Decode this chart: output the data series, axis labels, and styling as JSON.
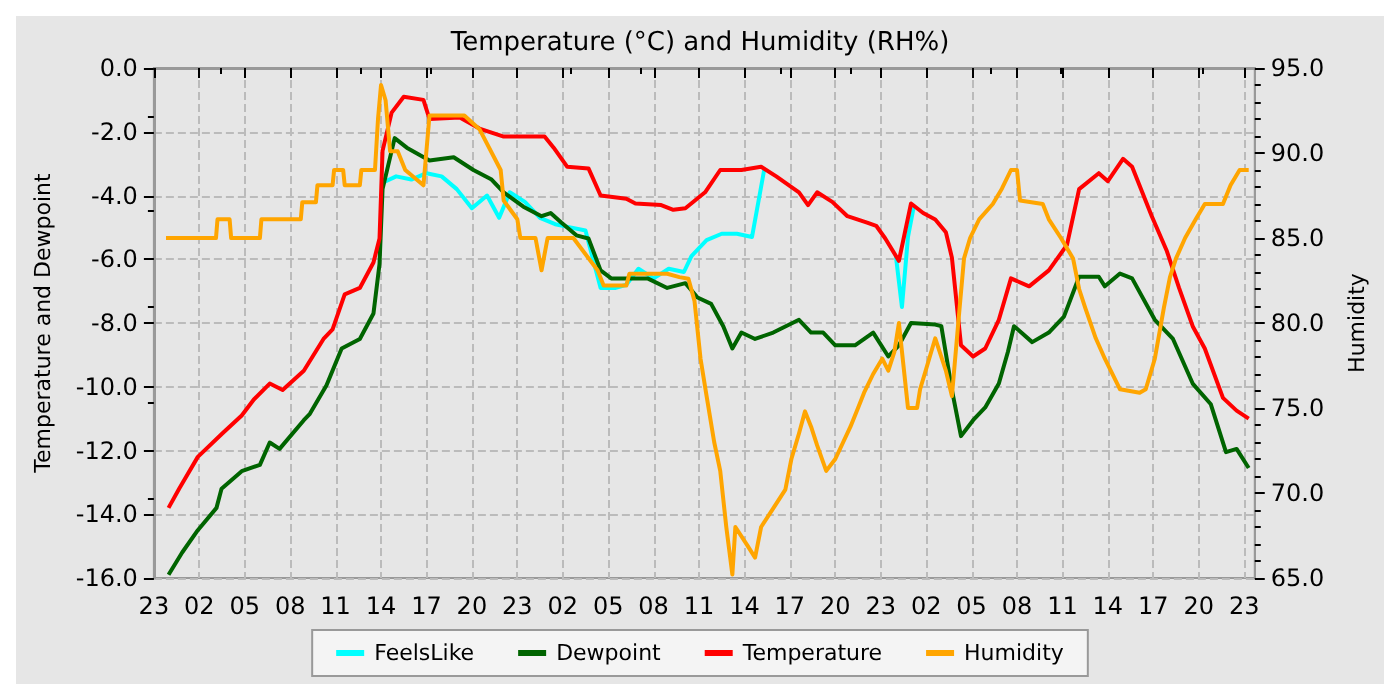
{
  "chart_data": {
    "type": "line",
    "title": "Temperature (°C) and Humidity (RH%)",
    "ylabel": "Temperature and Dewpoint",
    "y2label": "Humidity",
    "xlim": [
      "--01-01T23:00",
      "--01-04T23:42"
    ],
    "xticks": [
      {
        "value": "--01-01T23:00",
        "label": "23"
      },
      {
        "value": "--01-02T02:00",
        "label": "02"
      },
      {
        "value": "--01-02T05:00",
        "label": "05"
      },
      {
        "value": "--01-02T08:00",
        "label": "08"
      },
      {
        "value": "--01-02T11:00",
        "label": "11"
      },
      {
        "value": "--01-02T14:00",
        "label": "14"
      },
      {
        "value": "--01-02T17:00",
        "label": "17"
      },
      {
        "value": "--01-02T20:00",
        "label": "20"
      },
      {
        "value": "--01-02T23:00",
        "label": "23"
      },
      {
        "value": "--01-03T02:00",
        "label": "02"
      },
      {
        "value": "--01-03T05:00",
        "label": "05"
      },
      {
        "value": "--01-03T08:00",
        "label": "08"
      },
      {
        "value": "--01-03T11:00",
        "label": "11"
      },
      {
        "value": "--01-03T14:00",
        "label": "14"
      },
      {
        "value": "--01-03T17:00",
        "label": "17"
      },
      {
        "value": "--01-03T20:00",
        "label": "20"
      },
      {
        "value": "--01-03T23:00",
        "label": "23"
      },
      {
        "value": "--01-04T02:00",
        "label": "02"
      },
      {
        "value": "--01-04T05:00",
        "label": "05"
      },
      {
        "value": "--01-04T08:00",
        "label": "08"
      },
      {
        "value": "--01-04T11:00",
        "label": "11"
      },
      {
        "value": "--01-04T14:00",
        "label": "14"
      },
      {
        "value": "--01-04T17:00",
        "label": "17"
      },
      {
        "value": "--01-04T20:00",
        "label": "20"
      },
      {
        "value": "--01-04T23:00",
        "label": "23"
      }
    ],
    "ylim": [
      -16,
      0
    ],
    "yticks": [
      {
        "value": -16,
        "label": "-16.0"
      },
      {
        "value": -14,
        "label": "-14.0"
      },
      {
        "value": -12,
        "label": "-12.0"
      },
      {
        "value": -10,
        "label": "-10.0"
      },
      {
        "value": -8,
        "label": "-8.0"
      },
      {
        "value": -6,
        "label": "-6.0"
      },
      {
        "value": -4,
        "label": "-4.0"
      },
      {
        "value": -2,
        "label": "-2.0"
      },
      {
        "value": 0,
        "label": "0.0"
      }
    ],
    "y2lim": [
      65,
      95
    ],
    "y2ticks": [
      {
        "value": 65,
        "label": "65.0"
      },
      {
        "value": 70,
        "label": "70.0"
      },
      {
        "value": 75,
        "label": "75.0"
      },
      {
        "value": 80,
        "label": "80.0"
      },
      {
        "value": 85,
        "label": "85.0"
      },
      {
        "value": 90,
        "label": "90.0"
      },
      {
        "value": 95,
        "label": "95.0"
      }
    ],
    "grid": true,
    "legend": "bottom",
    "marker": "none",
    "line_style": "solid",
    "series": [
      {
        "name": "FeelsLike",
        "color": "#00ffff",
        "x": [
          "--01-02T14:06",
          "--01-02T15:00",
          "--01-02T16:00",
          "--01-02T17:00",
          "--01-02T18:00",
          "--01-02T19:00",
          "--01-02T20:00",
          "--01-02T21:00",
          "--01-02T21:48",
          "--01-02T22:30",
          "--01-02T23:30",
          "--01-03T00:30",
          "--01-03T01:30",
          "--01-03T02:30",
          "--01-03T03:30",
          "--01-03T04:30",
          "--01-03T05:30",
          "--01-03T06:12",
          "--01-03T07:00",
          "--01-03T08:00",
          "--01-03T09:00",
          "--01-03T10:00",
          "--01-03T10:30",
          "--01-03T11:30",
          "--01-03T12:30",
          "--01-03T13:30",
          "--01-03T14:30",
          "--01-03T15:18",
          "--01-03T20:00",
          "--01-04T00:00",
          "--01-04T00:24",
          "--01-04T00:48",
          "--01-04T01:12"
        ],
        "values": [
          -3.6,
          -3.4,
          -3.5,
          -3.3,
          -3.4,
          -3.8,
          -4.4,
          -4.0,
          -4.7,
          -3.9,
          -4.2,
          -4.7,
          -4.9,
          -5.0,
          -5.1,
          -6.9,
          -6.9,
          -6.8,
          -6.3,
          -6.6,
          -6.3,
          -6.4,
          -5.9,
          -5.4,
          -5.2,
          -5.2,
          -5.3,
          -3.2,
          null,
          -5.9,
          -7.5,
          -5.3,
          -4.3
        ]
      },
      {
        "name": "Dewpoint",
        "color": "#006400",
        "x": [
          "--01-01T23:58",
          "--01-02T00:52",
          "--01-02T01:54",
          "--01-02T03:08",
          "--01-02T03:28",
          "--01-02T04:48",
          "--01-02T06:00",
          "--01-02T06:39",
          "--01-02T07:18",
          "--01-02T08:54",
          "--01-02T09:18",
          "--01-02T10:24",
          "--01-02T11:24",
          "--01-02T12:36",
          "--01-02T13:30",
          "--01-02T13:54",
          "--01-02T14:06",
          "--01-02T14:54",
          "--01-02T15:42",
          "--01-02T17:12",
          "--01-02T18:48",
          "--01-02T20:06",
          "--01-02T21:18",
          "--01-02T22:06",
          "--01-02T23:24",
          "--01-03T00:36",
          "--01-03T01:12",
          "--01-03T01:54",
          "--01-03T02:54",
          "--01-03T03:42",
          "--01-03T04:30",
          "--01-03T05:12",
          "--01-03T07:36",
          "--01-03T08:54",
          "--01-03T10:06",
          "--01-03T10:54",
          "--01-03T11:48",
          "--01-03T12:36",
          "--01-03T13:12",
          "--01-03T13:48",
          "--01-03T14:42",
          "--01-03T15:54",
          "--01-03T17:36",
          "--01-03T18:24",
          "--01-03T19:12",
          "--01-03T20:00",
          "--01-03T21:18",
          "--01-03T22:30",
          "--01-03T23:30",
          "--01-04T00:12",
          "--01-04T01:00",
          "--01-04T02:36",
          "--01-04T03:00",
          "--01-04T03:42",
          "--01-04T04:18",
          "--01-04T05:06",
          "--01-04T05:54",
          "--01-04T06:48",
          "--01-04T07:24",
          "--01-04T07:48",
          "--01-04T09:00",
          "--01-04T10:06",
          "--01-04T11:06",
          "--01-04T12:06",
          "--01-04T13:24",
          "--01-04T13:48",
          "--01-04T14:48",
          "--01-04T15:36",
          "--01-04T17:06",
          "--01-04T18:18",
          "--01-04T19:36",
          "--01-04T20:48",
          "--01-04T21:48",
          "--01-04T22:30",
          "--01-04T23:18"
        ],
        "values": [
          -15.9,
          -15.2,
          -14.5,
          -13.8,
          -13.2,
          -12.65,
          -12.45,
          -11.75,
          -11.95,
          -11.05,
          -10.85,
          -9.95,
          -8.8,
          -8.5,
          -7.7,
          -6.15,
          -3.8,
          -2.2,
          -2.5,
          -2.9,
          -2.8,
          -3.2,
          -3.5,
          -3.9,
          -4.35,
          -4.65,
          -4.55,
          -4.85,
          -5.25,
          -5.35,
          -6.35,
          -6.6,
          -6.6,
          -6.9,
          -6.75,
          -7.2,
          -7.4,
          -8.1,
          -8.8,
          -8.3,
          -8.5,
          -8.3,
          -7.9,
          -8.3,
          -8.3,
          -8.7,
          -8.7,
          -8.3,
          -9.05,
          -8.7,
          -8.0,
          -8.05,
          -8.1,
          -10.1,
          -11.55,
          -11.05,
          -10.65,
          -9.9,
          -8.9,
          -8.1,
          -8.6,
          -8.3,
          -7.8,
          -6.55,
          -6.55,
          -6.85,
          -6.45,
          -6.6,
          -7.9,
          -8.5,
          -9.9,
          -10.55,
          -12.05,
          -11.95,
          -12.55
        ]
      },
      {
        "name": "Temperature",
        "color": "#ff0000",
        "x": [
          "--01-01T23:58",
          "--01-02T00:40",
          "--01-02T01:54",
          "--01-02T03:33",
          "--01-02T04:48",
          "--01-02T05:36",
          "--01-02T06:39",
          "--01-02T07:30",
          "--01-02T08:54",
          "--01-02T10:12",
          "--01-02T10:48",
          "--01-02T11:36",
          "--01-02T12:36",
          "--01-02T13:30",
          "--01-02T13:54",
          "--01-02T14:06",
          "--01-02T14:42",
          "--01-02T15:30",
          "--01-02T16:48",
          "--01-02T17:12",
          "--01-02T19:12",
          "--01-02T20:30",
          "--01-02T22:06",
          "--01-03T00:48",
          "--01-03T01:24",
          "--01-03T02:18",
          "--01-03T03:42",
          "--01-03T04:30",
          "--01-03T06:12",
          "--01-03T06:48",
          "--01-03T08:30",
          "--01-03T09:18",
          "--01-03T10:06",
          "--01-03T11:24",
          "--01-03T12:24",
          "--01-03T13:48",
          "--01-03T15:06",
          "--01-03T16:06",
          "--01-03T17:36",
          "--01-03T18:12",
          "--01-03T18:48",
          "--01-03T19:48",
          "--01-03T20:48",
          "--01-03T22:06",
          "--01-03T22:42",
          "--01-03T23:18",
          "--01-04T00:12",
          "--01-04T01:00",
          "--01-04T01:48",
          "--01-04T02:36",
          "--01-04T03:18",
          "--01-04T03:42",
          "--01-04T04:18",
          "--01-04T05:06",
          "--01-04T05:54",
          "--01-04T06:48",
          "--01-04T07:36",
          "--01-04T08:48",
          "--01-04T10:06",
          "--01-04T11:18",
          "--01-04T12:06",
          "--01-04T13:24",
          "--01-04T14:00",
          "--01-04T15:00",
          "--01-04T15:36",
          "--01-04T16:54",
          "--01-04T17:54",
          "--01-04T18:42",
          "--01-04T19:36",
          "--01-04T20:24",
          "--01-04T21:36",
          "--01-04T22:30",
          "--01-04T23:18"
        ],
        "values": [
          -13.8,
          -13.2,
          -12.2,
          -11.45,
          -10.9,
          -10.4,
          -9.9,
          -10.1,
          -9.5,
          -8.5,
          -8.2,
          -7.1,
          -6.9,
          -6.1,
          -5.35,
          -2.6,
          -1.4,
          -0.9,
          -1.0,
          -1.6,
          -1.55,
          -1.9,
          -2.15,
          -2.15,
          -2.5,
          -3.1,
          -3.15,
          -4.0,
          -4.1,
          -4.25,
          -4.3,
          -4.45,
          -4.4,
          -3.9,
          -3.2,
          -3.2,
          -3.1,
          -3.4,
          -3.9,
          -4.3,
          -3.9,
          -4.2,
          -4.65,
          -4.85,
          -4.95,
          -5.35,
          -6.05,
          -4.25,
          -4.55,
          -4.75,
          -5.15,
          -5.95,
          -8.7,
          -9.05,
          -8.8,
          -7.9,
          -6.6,
          -6.85,
          -6.35,
          -5.55,
          -3.8,
          -3.3,
          -3.55,
          -2.85,
          -3.1,
          -4.65,
          -5.75,
          -6.9,
          -8.1,
          -8.8,
          -10.35,
          -10.75,
          -11.0
        ]
      },
      {
        "name": "Humidity",
        "color": "#ffa500",
        "axis": "y2",
        "x": [
          "--01-01T23:48",
          "--01-02T03:06",
          "--01-02T03:12",
          "--01-02T04:00",
          "--01-02T04:06",
          "--01-02T06:00",
          "--01-02T06:06",
          "--01-02T08:42",
          "--01-02T08:48",
          "--01-02T09:42",
          "--01-02T09:48",
          "--01-02T10:48",
          "--01-02T10:54",
          "--01-02T11:30",
          "--01-02T11:36",
          "--01-02T12:36",
          "--01-02T12:42",
          "--01-02T13:36",
          "--01-02T13:48",
          "--01-02T14:00",
          "--01-02T14:18",
          "--01-02T14:36",
          "--01-02T15:06",
          "--01-02T15:36",
          "--01-02T16:48",
          "--01-02T17:12",
          "--01-02T19:30",
          "--01-02T20:30",
          "--01-02T21:54",
          "--01-02T22:06",
          "--01-02T23:00",
          "--01-02T23:12",
          "--01-03T00:12",
          "--01-03T00:36",
          "--01-03T01:00",
          "--01-03T02:42",
          "--01-03T04:18",
          "--01-03T04:42",
          "--01-03T06:12",
          "--01-03T06:24",
          "--01-03T08:54",
          "--01-03T09:42",
          "--01-03T10:18",
          "--01-03T10:42",
          "--01-03T11:06",
          "--01-03T11:30",
          "--01-03T12:00",
          "--01-03T12:24",
          "--01-03T12:48",
          "--01-03T13:12",
          "--01-03T13:24",
          "--01-03T14:12",
          "--01-03T14:42",
          "--01-03T15:06",
          "--01-03T15:54",
          "--01-03T16:42",
          "--01-03T17:06",
          "--01-03T17:36",
          "--01-03T18:00",
          "--01-03T18:24",
          "--01-03T18:48",
          "--01-03T19:24",
          "--01-03T20:00",
          "--01-03T21:00",
          "--01-03T21:30",
          "--01-03T21:54",
          "--01-03T22:30",
          "--01-03T23:06",
          "--01-03T23:30",
          "--01-03T23:54",
          "--01-04T00:12",
          "--01-04T00:48",
          "--01-04T01:24",
          "--01-04T01:36",
          "--01-04T02:12",
          "--01-04T02:36",
          "--01-04T03:18",
          "--01-04T03:42",
          "--01-04T04:06",
          "--01-04T04:30",
          "--01-04T04:54",
          "--01-04T05:30",
          "--01-04T06:24",
          "--01-04T07:00",
          "--01-04T07:36",
          "--01-04T08:00",
          "--01-04T08:12",
          "--01-04T09:42",
          "--01-04T10:06",
          "--01-04T10:54",
          "--01-04T11:42",
          "--01-04T12:06",
          "--01-04T12:30",
          "--01-04T13:12",
          "--01-04T13:48",
          "--01-04T14:48",
          "--01-04T16:06",
          "--01-04T16:30",
          "--01-04T17:06",
          "--01-04T17:42",
          "--01-04T18:06",
          "--01-04T18:30",
          "--01-04T19:06",
          "--01-04T19:48",
          "--01-04T20:24",
          "--01-04T21:36",
          "--01-04T22:06",
          "--01-04T22:42",
          "--01-04T23:18"
        ],
        "values": [
          85.0,
          85.0,
          86.1,
          86.1,
          85.0,
          85.0,
          86.1,
          86.1,
          87.1,
          87.1,
          88.1,
          88.1,
          89.0,
          89.0,
          88.1,
          88.1,
          89.0,
          89.0,
          92.0,
          94.0,
          93.1,
          90.1,
          90.1,
          89.0,
          88.1,
          92.2,
          92.2,
          91.4,
          89.0,
          87.2,
          86.1,
          85.0,
          85.0,
          83.1,
          85.0,
          85.0,
          83.1,
          82.2,
          82.2,
          82.9,
          82.9,
          82.7,
          82.6,
          81.3,
          77.9,
          75.7,
          73.0,
          71.3,
          68.0,
          65.2,
          68.0,
          66.9,
          66.2,
          68.0,
          69.1,
          70.2,
          72.0,
          73.5,
          74.8,
          73.9,
          72.8,
          71.3,
          72.0,
          73.9,
          75.0,
          75.9,
          77.0,
          77.9,
          77.2,
          78.3,
          80.0,
          75.0,
          75.0,
          76.1,
          77.9,
          79.1,
          77.2,
          75.7,
          79.8,
          83.8,
          85.0,
          86.1,
          87.0,
          87.9,
          89.0,
          89.0,
          87.2,
          87.0,
          86.1,
          85.0,
          83.8,
          82.0,
          80.9,
          79.1,
          77.9,
          76.1,
          75.9,
          76.1,
          77.9,
          80.9,
          82.7,
          83.8,
          85.0,
          86.1,
          87.0,
          87.0,
          88.1,
          89.0,
          89.0
        ]
      }
    ]
  }
}
